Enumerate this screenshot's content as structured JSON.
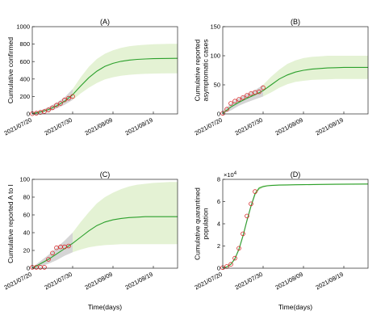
{
  "figure": {
    "xlabel_bottom": "Time(days)"
  },
  "chart_data": [
    {
      "id": "A",
      "type": "line",
      "title": "(A)",
      "xlabel": "",
      "ylabel_lines": [
        "Cumulative confirmed"
      ],
      "x_ticks": [
        "2021/07/20",
        "2021/07/30",
        "2021/08/09",
        "2021/08/19"
      ],
      "xlim_days": [
        0,
        36
      ],
      "ylim": [
        0,
        1000
      ],
      "y_ticks": [
        0,
        200,
        400,
        600,
        800,
        1000
      ],
      "y_exponent": "",
      "observed": {
        "day": [
          0,
          1,
          2,
          3,
          4,
          5,
          6,
          7,
          8,
          9,
          10
        ],
        "value": [
          3,
          8,
          18,
          28,
          45,
          70,
          100,
          120,
          160,
          180,
          200
        ]
      },
      "fit": {
        "day": [
          0,
          2,
          4,
          6,
          8,
          10,
          12,
          14,
          16,
          18,
          20,
          22,
          24,
          26,
          28,
          30,
          32,
          34,
          36
        ],
        "mean": [
          3,
          22,
          50,
          92,
          145,
          220,
          320,
          415,
          490,
          545,
          580,
          603,
          617,
          625,
          630,
          633,
          635,
          636,
          637
        ],
        "lower": [
          0,
          10,
          28,
          60,
          105,
          160,
          235,
          300,
          355,
          395,
          420,
          438,
          448,
          455,
          459,
          462,
          464,
          465,
          466
        ],
        "upper": [
          15,
          40,
          78,
          128,
          190,
          285,
          420,
          540,
          630,
          690,
          730,
          757,
          775,
          786,
          793,
          798,
          801,
          803,
          804
        ]
      },
      "colors": {
        "fit": "#2ca02c",
        "band": "#e4f2d4",
        "band_early": "#d5d5d5",
        "observed": "#d62728"
      }
    },
    {
      "id": "B",
      "type": "line",
      "title": "(B)",
      "xlabel": "",
      "ylabel_lines": [
        "Cumulative reported",
        "asymptomatic cases"
      ],
      "x_ticks": [
        "2021/07/20",
        "2021/07/30",
        "2021/08/09",
        "2021/08/19"
      ],
      "xlim_days": [
        0,
        36
      ],
      "ylim": [
        0,
        150
      ],
      "y_ticks": [
        0,
        50,
        100,
        150
      ],
      "y_exponent": "",
      "observed": {
        "day": [
          0,
          1,
          2,
          3,
          4,
          5,
          6,
          7,
          8,
          9,
          10
        ],
        "value": [
          1,
          8,
          18,
          22,
          25,
          28,
          32,
          35,
          37,
          38,
          45
        ]
      },
      "fit": {
        "day": [
          0,
          2,
          4,
          6,
          8,
          10,
          12,
          14,
          16,
          18,
          20,
          22,
          24,
          26,
          28,
          30,
          32,
          34,
          36
        ],
        "mean": [
          1,
          12,
          20,
          27,
          33,
          40,
          50,
          60,
          67,
          72,
          75,
          77,
          78,
          79,
          79.5,
          80,
          80,
          80,
          80
        ],
        "lower": [
          0,
          6,
          14,
          20,
          25,
          30,
          37,
          45,
          51,
          55,
          57,
          58.5,
          59,
          59.5,
          60,
          60,
          60,
          60,
          60
        ],
        "upper": [
          4,
          18,
          27,
          34,
          41,
          50,
          64,
          76,
          86,
          92,
          96,
          98,
          99,
          100,
          100,
          100,
          100,
          100,
          100
        ]
      },
      "colors": {
        "fit": "#2ca02c",
        "band": "#e4f2d4",
        "band_early": "#d5d5d5",
        "observed": "#d62728"
      }
    },
    {
      "id": "C",
      "type": "line",
      "title": "(C)",
      "xlabel": "",
      "ylabel_lines": [
        "Cumulative reported A to I"
      ],
      "x_ticks": [
        "2021/07/20",
        "2021/07/30",
        "2021/08/09",
        "2021/08/19"
      ],
      "xlim_days": [
        0,
        36
      ],
      "ylim": [
        0,
        100
      ],
      "y_ticks": [
        0,
        20,
        40,
        60,
        80,
        100
      ],
      "y_exponent": "",
      "observed": {
        "day": [
          0,
          1,
          2,
          3,
          4,
          5,
          6,
          7,
          8,
          9
        ],
        "value": [
          1,
          1,
          1,
          1,
          10,
          17,
          23,
          24,
          24,
          25
        ]
      },
      "fit": {
        "day": [
          0,
          2,
          4,
          6,
          8,
          10,
          12,
          14,
          16,
          18,
          20,
          22,
          24,
          26,
          28,
          30,
          32,
          34,
          36
        ],
        "mean": [
          0,
          5,
          10,
          16,
          22,
          28,
          35,
          42,
          48,
          52,
          54.5,
          56,
          57,
          57.5,
          58,
          58,
          58,
          58,
          58
        ],
        "lower": [
          0,
          2,
          5,
          9,
          14,
          18,
          21,
          23.5,
          25,
          26,
          26.5,
          27,
          27,
          27,
          27,
          27,
          27,
          27,
          27
        ],
        "upper": [
          1,
          8,
          15,
          23,
          31,
          40,
          52,
          63,
          73,
          80,
          85,
          89,
          92,
          94,
          95,
          96,
          96.5,
          97,
          97
        ]
      },
      "colors": {
        "fit": "#2ca02c",
        "band": "#e4f2d4",
        "band_early": "#d5d5d5",
        "observed": "#d62728"
      }
    },
    {
      "id": "D",
      "type": "line",
      "title": "(D)",
      "xlabel": "",
      "ylabel_lines": [
        "Cumulative quarantined",
        "population"
      ],
      "x_ticks": [
        "2021/07/20",
        "2021/07/30",
        "2021/08/09",
        "2021/08/19"
      ],
      "xlim_days": [
        0,
        36
      ],
      "ylim": [
        0,
        8
      ],
      "y_ticks": [
        0,
        2,
        4,
        6,
        8
      ],
      "y_exponent": "4",
      "observed": {
        "day": [
          0,
          1,
          2,
          3,
          4,
          5,
          6,
          7,
          8
        ],
        "value": [
          0.05,
          0.15,
          0.35,
          0.9,
          1.8,
          3.1,
          4.7,
          5.8,
          6.9
        ]
      },
      "fit": {
        "day": [
          0,
          1,
          2,
          3,
          4,
          5,
          6,
          7,
          8,
          9,
          10,
          11,
          12,
          14,
          16,
          18,
          20,
          24,
          28,
          32,
          36
        ],
        "mean": [
          0.03,
          0.12,
          0.35,
          0.85,
          1.7,
          2.9,
          4.3,
          5.6,
          6.7,
          7.2,
          7.35,
          7.42,
          7.45,
          7.48,
          7.5,
          7.51,
          7.52,
          7.54,
          7.56,
          7.57,
          7.58
        ],
        "lower": [
          0.02,
          0.1,
          0.3,
          0.75,
          1.55,
          2.7,
          4.1,
          5.4,
          6.5,
          7.05,
          7.25,
          7.35,
          7.4,
          7.43,
          7.45,
          7.46,
          7.47,
          7.49,
          7.51,
          7.52,
          7.53
        ],
        "upper": [
          0.05,
          0.15,
          0.4,
          0.95,
          1.85,
          3.1,
          4.5,
          5.8,
          6.9,
          7.35,
          7.45,
          7.5,
          7.52,
          7.54,
          7.56,
          7.57,
          7.58,
          7.6,
          7.62,
          7.63,
          7.64
        ]
      },
      "colors": {
        "fit": "#2ca02c",
        "band": "#e4f2d4",
        "band_early": "#d5d5d5",
        "observed": "#d62728"
      }
    }
  ]
}
